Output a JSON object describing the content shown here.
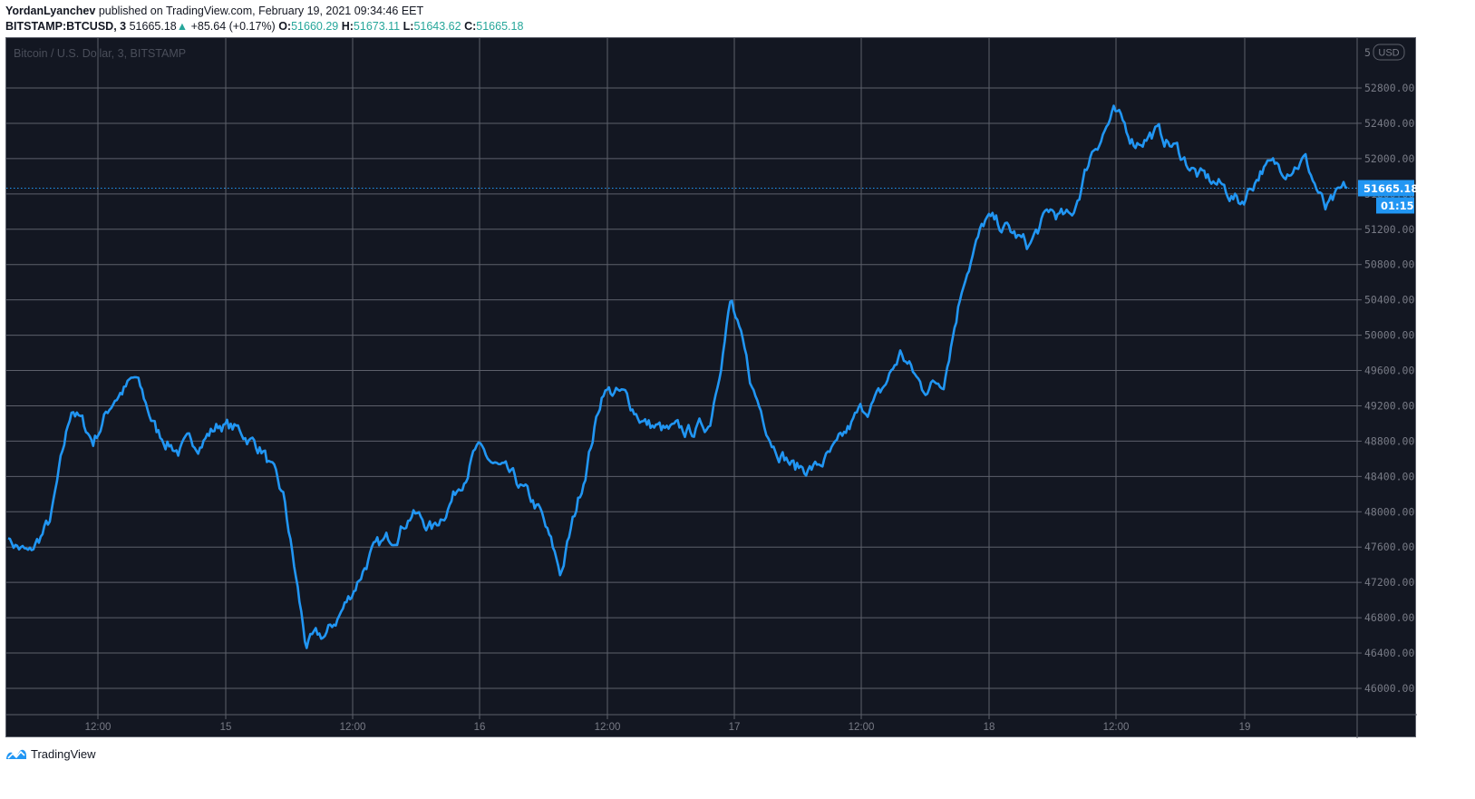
{
  "header": {
    "author": "YordanLyanchev",
    "published_text": " published on TradingView.com, February 19, 2021 09:34:46 EET",
    "symbol": "BITSTAMP:BTCUSD, 3",
    "last": "51665.18",
    "change_arrow": "▲",
    "change": "+85.64 (+0.17%)",
    "o_label": "O:",
    "o": "51660.29",
    "h_label": "H:",
    "h": "51673.11",
    "l_label": "L:",
    "l": "51643.62",
    "c_label": "C:",
    "c": "51665.18"
  },
  "chart": {
    "watermark": "Bitcoin / U.S. Dollar, 3, BITSTAMP",
    "currency_badge": "USD",
    "price_label": "51665.18",
    "countdown_label": "01:15",
    "line_color": "#2196f3",
    "background": "#131722",
    "grid_color": "#5d606b",
    "axis_text_color": "#787b86"
  },
  "footer": {
    "brand": "TradingView"
  },
  "chart_data": {
    "type": "line",
    "title": "Bitcoin / U.S. Dollar, 3, BITSTAMP",
    "xlabel": "",
    "ylabel": "USD",
    "ylim": [
      45600,
      53200
    ],
    "grid": true,
    "legend": "none",
    "x_ticks": [
      "12:00",
      "15",
      "12:00",
      "16",
      "12:00",
      "17",
      "12:00",
      "18",
      "12:00",
      "19"
    ],
    "y_ticks": [
      "52800.00",
      "52400.00",
      "52000.00",
      "51600.00",
      "51200.00",
      "50800.00",
      "50400.00",
      "50000.00",
      "49600.00",
      "49200.00",
      "48800.00",
      "48400.00",
      "48000.00",
      "47600.00",
      "47200.00",
      "46800.00",
      "46400.00",
      "46000.00"
    ],
    "y_tick_top_partial": "5",
    "last_value": 51665.18,
    "series": [
      {
        "name": "BTCUSD",
        "x": [
          "14 06:00",
          "14 08:00",
          "14 10:00",
          "14 11:00",
          "14 12:00",
          "14 14:00",
          "14 16:00",
          "14 18:00",
          "14 20:00",
          "14 22:00",
          "15 00:00",
          "15 02:00",
          "15 04:00",
          "15 06:00",
          "15 08:00",
          "15 10:00",
          "15 12:00",
          "15 14:00",
          "15 16:00",
          "15 18:00",
          "15 20:00",
          "15 22:00",
          "16 00:00",
          "16 02:00",
          "16 04:00",
          "16 06:00",
          "16 08:00",
          "16 10:00",
          "16 12:00",
          "16 14:00",
          "16 16:00",
          "16 18:00",
          "16 20:00",
          "16 22:00",
          "17 00:00",
          "17 02:00",
          "17 04:00",
          "17 06:00",
          "17 08:00",
          "17 10:00",
          "17 12:00",
          "17 14:00",
          "17 16:00",
          "17 18:00",
          "17 20:00",
          "17 22:00",
          "18 00:00",
          "18 02:00",
          "18 04:00",
          "18 06:00",
          "18 08:00",
          "18 10:00",
          "18 12:00",
          "18 14:00",
          "18 16:00",
          "18 18:00",
          "18 20:00",
          "18 22:00",
          "19 00:00",
          "19 02:00",
          "19 04:00",
          "19 06:00",
          "19 08:00",
          "19 09:34"
        ],
        "values": [
          47700,
          47500,
          47900,
          49200,
          48800,
          49300,
          49500,
          48900,
          48700,
          48800,
          49000,
          48900,
          48700,
          48100,
          46500,
          46600,
          47000,
          47500,
          47700,
          48000,
          47800,
          48200,
          48700,
          48500,
          48300,
          48000,
          47300,
          48300,
          49400,
          49300,
          49000,
          48900,
          48900,
          49000,
          50400,
          49400,
          48800,
          48500,
          48500,
          48700,
          49100,
          49300,
          49800,
          49400,
          49500,
          50700,
          51300,
          51200,
          51000,
          51400,
          51300,
          52100,
          52500,
          52200,
          52300,
          52100,
          51800,
          51700,
          51500,
          51900,
          51900,
          52000,
          51400,
          51665
        ]
      }
    ]
  }
}
